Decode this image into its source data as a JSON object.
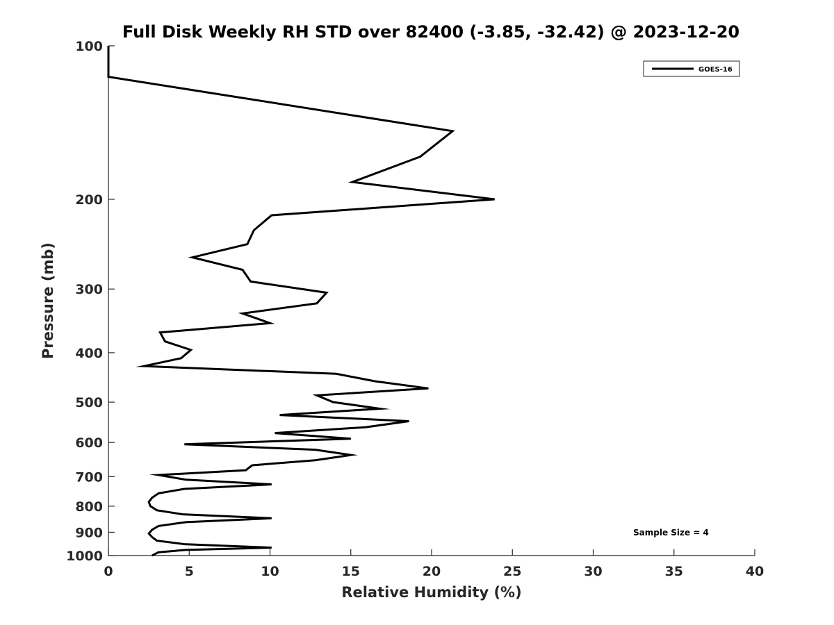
{
  "chart_data": {
    "type": "line",
    "title": "Full Disk Weekly RH STD over 82400 (-3.85, -32.42) @ 2023-12-20",
    "xlabel": "Relative Humidity (%)",
    "ylabel": "Pressure (mb)",
    "xlim": [
      0,
      40
    ],
    "ylim": [
      100,
      1000
    ],
    "yscale": "log",
    "yreversed": true,
    "xticks": [
      0,
      5,
      10,
      15,
      20,
      25,
      30,
      35,
      40
    ],
    "yticks": [
      100,
      200,
      300,
      400,
      500,
      600,
      700,
      800,
      900,
      1000
    ],
    "grid": false,
    "legend": {
      "position": "top-right",
      "entries": [
        "GOES-16"
      ]
    },
    "annotation": "Sample Size = 4",
    "series": [
      {
        "name": "GOES-16",
        "color": "#000000",
        "points": [
          [
            0.0,
            100
          ],
          [
            0.0,
            115
          ],
          [
            21.3,
            147
          ],
          [
            19.3,
            165
          ],
          [
            15.1,
            185
          ],
          [
            23.9,
            200
          ],
          [
            10.1,
            215
          ],
          [
            9.0,
            230
          ],
          [
            8.6,
            245
          ],
          [
            5.2,
            260
          ],
          [
            8.3,
            275
          ],
          [
            8.8,
            290
          ],
          [
            13.5,
            305
          ],
          [
            12.9,
            320
          ],
          [
            8.3,
            335
          ],
          [
            10.0,
            350
          ],
          [
            3.2,
            365
          ],
          [
            3.5,
            380
          ],
          [
            5.1,
            395
          ],
          [
            4.5,
            410
          ],
          [
            2.2,
            425
          ],
          [
            14.1,
            440
          ],
          [
            16.5,
            455
          ],
          [
            19.8,
            470
          ],
          [
            12.9,
            485
          ],
          [
            13.9,
            500
          ],
          [
            16.8,
            515
          ],
          [
            10.6,
            530
          ],
          [
            18.6,
            545
          ],
          [
            15.9,
            560
          ],
          [
            10.3,
            575
          ],
          [
            15.0,
            590
          ],
          [
            4.7,
            605
          ],
          [
            12.8,
            620
          ],
          [
            15.0,
            635
          ],
          [
            12.8,
            650
          ],
          [
            8.9,
            665
          ],
          [
            8.5,
            680
          ],
          [
            3.1,
            695
          ],
          [
            4.8,
            710
          ],
          [
            10.1,
            725
          ],
          [
            4.7,
            740
          ],
          [
            3.1,
            755
          ],
          [
            2.7,
            770
          ],
          [
            2.5,
            785
          ],
          [
            2.6,
            800
          ],
          [
            3.0,
            815
          ],
          [
            4.6,
            830
          ],
          [
            10.1,
            845
          ],
          [
            4.8,
            860
          ],
          [
            3.1,
            875
          ],
          [
            2.7,
            890
          ],
          [
            2.5,
            905
          ],
          [
            2.7,
            920
          ],
          [
            3.0,
            935
          ],
          [
            4.7,
            950
          ],
          [
            10.1,
            965
          ],
          [
            4.8,
            975
          ],
          [
            3.1,
            985
          ],
          [
            2.7,
            1000
          ]
        ]
      }
    ]
  }
}
